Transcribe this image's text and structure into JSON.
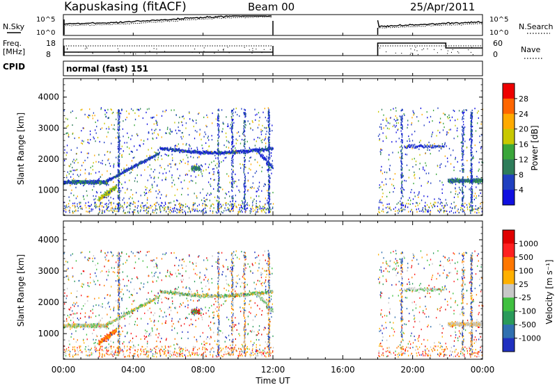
{
  "header": {
    "station": "Kapuskasing (fitACF)",
    "beam": "Beam 00",
    "date": "25/Apr/2011"
  },
  "noise_panel": {
    "left_label": "N.Sky",
    "right_label": "N.Search",
    "left_ticks": [
      "10^5",
      "10^0"
    ],
    "right_ticks": [
      "10^5",
      "10^0"
    ]
  },
  "freq_panel": {
    "left_label_1": "Freq.",
    "left_label_2": "[MHz]",
    "left_ticks": [
      "18",
      "8"
    ],
    "right_label": "Nave",
    "right_ticks": [
      "60",
      "0"
    ]
  },
  "cpid": {
    "label": "CPID",
    "value": "normal (fast) 151"
  },
  "chart_data": [
    {
      "type": "heatmap",
      "title": "",
      "xlabel": "Time UT",
      "ylabel": "Slant Range [km]",
      "x_ticks": [
        "00:00",
        "04:00",
        "08:00",
        "12:00",
        "16:00",
        "20:00",
        "00:00"
      ],
      "y_ticks": [
        "1000",
        "2000",
        "3000",
        "4000"
      ],
      "xlim_hours": [
        0,
        24
      ],
      "ylim_km": [
        180,
        4600
      ],
      "colorbar": {
        "label": "Power [dB]",
        "ticks": [
          "4",
          "8",
          "12",
          "16",
          "20",
          "24",
          "28"
        ],
        "colors": [
          "#1010e0",
          "#2040c0",
          "#2e7d5a",
          "#3aa63a",
          "#c8c800",
          "#ffaa00",
          "#ff6600",
          "#ee0000"
        ]
      },
      "data_gap_hours": [
        12.0,
        18.0
      ],
      "features": [
        {
          "name": "evening band",
          "t_start": 0.0,
          "t_end": 2.5,
          "range_km": 1250,
          "level_db": 8
        },
        {
          "name": "rising band",
          "t_start": 2.5,
          "t_end": 5.5,
          "range_km": 2100,
          "level_db": 6
        },
        {
          "name": "upper band",
          "t_start": 5.5,
          "t_end": 12.0,
          "range_km": 2350,
          "level_db": 6
        },
        {
          "name": "near patch",
          "t_start": 2.0,
          "t_end": 3.0,
          "range_km": 900,
          "level_db": 18
        },
        {
          "name": "green patch",
          "t_start": 7.3,
          "t_end": 7.8,
          "range_km": 1700,
          "level_db": 14
        },
        {
          "name": "late band",
          "t_start": 22.0,
          "t_end": 24.0,
          "range_km": 1300,
          "level_db": 12
        }
      ]
    },
    {
      "type": "heatmap",
      "title": "",
      "xlabel": "Time UT",
      "ylabel": "Slant Range [km]",
      "x_ticks": [
        "00:00",
        "04:00",
        "08:00",
        "12:00",
        "16:00",
        "20:00",
        "00:00"
      ],
      "y_ticks": [
        "1000",
        "2000",
        "3000",
        "4000"
      ],
      "xlim_hours": [
        0,
        24
      ],
      "ylim_km": [
        180,
        4600
      ],
      "colorbar": {
        "label": "Velocity [m s⁻¹]",
        "ticks": [
          "1000",
          "500",
          "100",
          "25",
          "-25",
          "-100",
          "-500",
          "-1000"
        ],
        "colors": [
          "#2030c0",
          "#3070b0",
          "#2a9a5a",
          "#40c040",
          "#c8c8c8",
          "#ffb000",
          "#ff7700",
          "#ff2020",
          "#e00000"
        ]
      },
      "data_gap_hours": [
        12.0,
        18.0
      ]
    }
  ]
}
